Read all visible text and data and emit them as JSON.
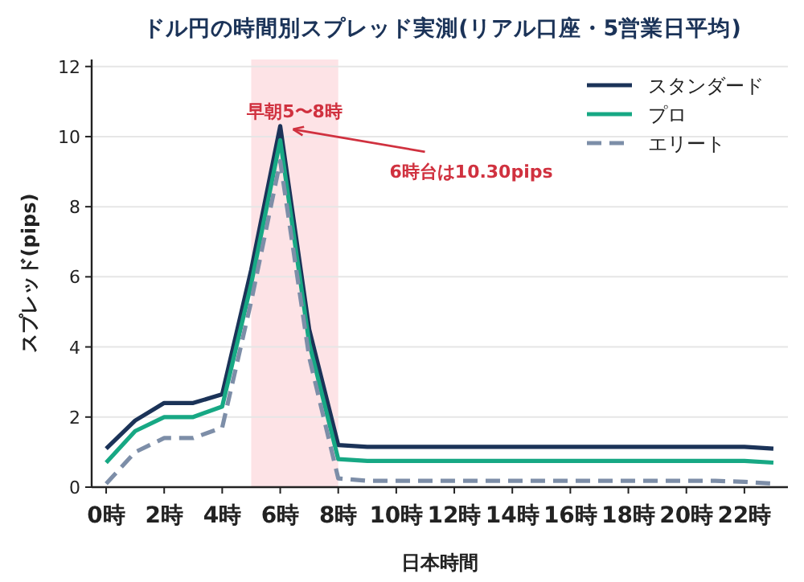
{
  "chart_data": {
    "type": "line",
    "title": "ドル円の時間別スプレッド実測(リアル口座・5営業日平均)",
    "xlabel": "日本時間",
    "ylabel": "スプレッド(pips)",
    "x": [
      0,
      1,
      2,
      3,
      4,
      5,
      6,
      7,
      8,
      9,
      10,
      11,
      12,
      13,
      14,
      15,
      16,
      17,
      18,
      19,
      20,
      21,
      22,
      23
    ],
    "series": [
      {
        "name": "スタンダード",
        "color": "#1b3358",
        "line_style": "solid",
        "values": [
          1.1,
          1.9,
          2.4,
          2.4,
          2.65,
          6.2,
          10.3,
          4.5,
          1.2,
          1.15,
          1.15,
          1.15,
          1.15,
          1.15,
          1.15,
          1.15,
          1.15,
          1.15,
          1.15,
          1.15,
          1.15,
          1.15,
          1.15,
          1.1
        ]
      },
      {
        "name": "プロ",
        "color": "#17a884",
        "line_style": "solid",
        "values": [
          0.7,
          1.6,
          2.0,
          2.0,
          2.3,
          5.8,
          9.9,
          4.1,
          0.8,
          0.75,
          0.75,
          0.75,
          0.75,
          0.75,
          0.75,
          0.75,
          0.75,
          0.75,
          0.75,
          0.75,
          0.75,
          0.75,
          0.75,
          0.7
        ]
      },
      {
        "name": "エリート",
        "color": "#7d8ea8",
        "line_style": "dashed",
        "values": [
          0.1,
          1.0,
          1.4,
          1.4,
          1.7,
          5.3,
          9.3,
          3.7,
          0.25,
          0.18,
          0.18,
          0.18,
          0.18,
          0.18,
          0.18,
          0.18,
          0.18,
          0.18,
          0.18,
          0.18,
          0.18,
          0.18,
          0.15,
          0.1
        ]
      }
    ],
    "xlim": [
      -0.5,
      23.5
    ],
    "xticks": [
      {
        "value": 0,
        "label": "0時"
      },
      {
        "value": 2,
        "label": "2時"
      },
      {
        "value": 4,
        "label": "4時"
      },
      {
        "value": 6,
        "label": "6時"
      },
      {
        "value": 8,
        "label": "8時"
      },
      {
        "value": 10,
        "label": "10時"
      },
      {
        "value": 12,
        "label": "12時"
      },
      {
        "value": 14,
        "label": "14時"
      },
      {
        "value": 16,
        "label": "16時"
      },
      {
        "value": 18,
        "label": "18時"
      },
      {
        "value": 20,
        "label": "20時"
      },
      {
        "value": 22,
        "label": "22時"
      }
    ],
    "ylim": [
      0,
      12.2
    ],
    "yticks": [
      0,
      2,
      4,
      6,
      8,
      10,
      12
    ],
    "bands": [
      {
        "axis": "x",
        "from": 5,
        "to": 8,
        "label": "早朝5〜8時",
        "color": "#fde3e6"
      }
    ],
    "annotations": [
      {
        "text": "6時台は10.30pips",
        "x": 6,
        "y": 10.3
      }
    ],
    "grid": "y",
    "legend": "top right"
  }
}
